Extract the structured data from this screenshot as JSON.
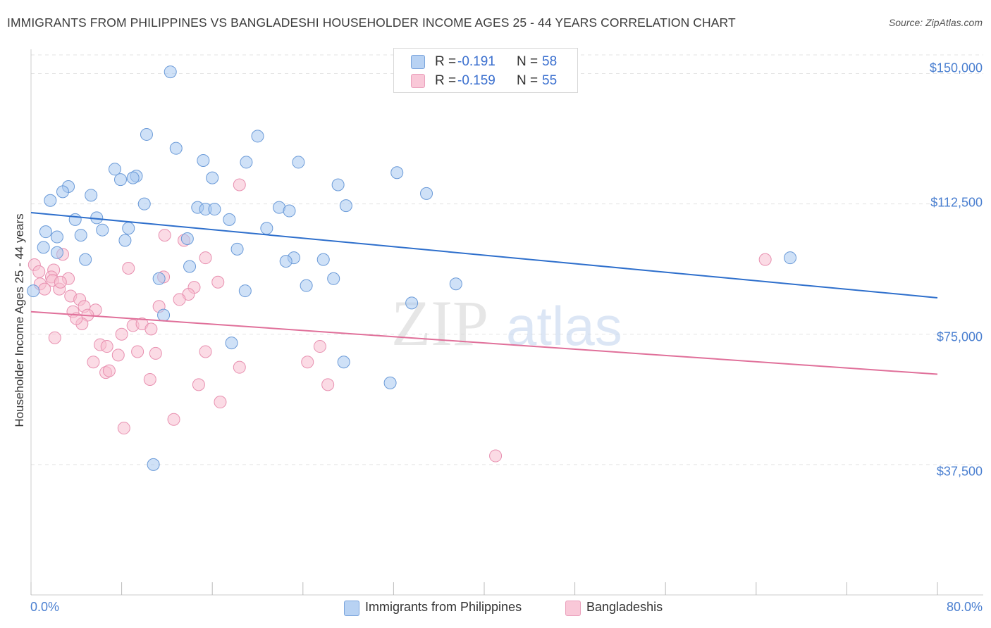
{
  "header": {
    "title": "IMMIGRANTS FROM PHILIPPINES VS BANGLADESHI HOUSEHOLDER INCOME AGES 25 - 44 YEARS CORRELATION CHART",
    "source": "Source: ZipAtlas.com"
  },
  "watermark": {
    "zip": "ZIP",
    "atlas": "atlas"
  },
  "legend": {
    "rows": [
      {
        "r_label": "R =",
        "r_value": "-0.191",
        "n_label": "N =",
        "n_value": "58"
      },
      {
        "r_label": "R =",
        "r_value": "-0.159",
        "n_label": "N =",
        "n_value": "55"
      }
    ]
  },
  "colors": {
    "philippines": "#a8c8f0",
    "philippines_stroke": "#6a9ad8",
    "philippines_line": "#2e6fcc",
    "bangladeshi": "#f7bdd0",
    "bangladeshi_stroke": "#e890b0",
    "bangladeshi_line": "#e0709a",
    "tick_label": "#4a7fd0",
    "grid": "#e3e3e3"
  },
  "chart_data": {
    "type": "scatter",
    "title": "IMMIGRANTS FROM PHILIPPINES VS BANGLADESHI HOUSEHOLDER INCOME AGES 25 - 44 YEARS CORRELATION CHART",
    "xlabel": "",
    "ylabel": "Householder Income Ages 25 - 44 years",
    "xlim": [
      0,
      80
    ],
    "ylim": [
      0,
      157000
    ],
    "x_tick_labels": [
      "0.0%",
      "80.0%"
    ],
    "y_ticks": [
      37500,
      75000,
      112500,
      150000
    ],
    "y_tick_labels": [
      "$37,500",
      "$75,000",
      "$112,500",
      "$150,000"
    ],
    "grid": true,
    "legend_position": "top-center",
    "series": [
      {
        "name": "Immigrants from Philippines",
        "R": -0.191,
        "N": 58,
        "trend": {
          "x": [
            0,
            80
          ],
          "y": [
            110000,
            85500
          ]
        },
        "points": [
          [
            12.3,
            150500
          ],
          [
            10.2,
            132500
          ],
          [
            12.8,
            128500
          ],
          [
            20.0,
            132000
          ],
          [
            19.0,
            124500
          ],
          [
            7.4,
            122500
          ],
          [
            7.9,
            119500
          ],
          [
            9.3,
            120500
          ],
          [
            9.0,
            120000
          ],
          [
            3.3,
            117500
          ],
          [
            2.8,
            116000
          ],
          [
            5.3,
            115000
          ],
          [
            1.7,
            113500
          ],
          [
            10.0,
            112500
          ],
          [
            14.7,
            111500
          ],
          [
            15.4,
            111000
          ],
          [
            16.2,
            111000
          ],
          [
            21.9,
            111500
          ],
          [
            22.8,
            110500
          ],
          [
            17.5,
            108000
          ],
          [
            3.9,
            108000
          ],
          [
            5.8,
            108500
          ],
          [
            6.3,
            105000
          ],
          [
            8.6,
            105500
          ],
          [
            20.8,
            105500
          ],
          [
            2.3,
            103000
          ],
          [
            1.3,
            104500
          ],
          [
            4.4,
            103500
          ],
          [
            8.3,
            102000
          ],
          [
            13.8,
            102500
          ],
          [
            1.1,
            100000
          ],
          [
            18.2,
            99500
          ],
          [
            2.3,
            98500
          ],
          [
            4.8,
            96500
          ],
          [
            23.2,
            97000
          ],
          [
            25.8,
            96500
          ],
          [
            14.0,
            94500
          ],
          [
            22.5,
            96000
          ],
          [
            26.7,
            91000
          ],
          [
            24.3,
            89000
          ],
          [
            11.3,
            91000
          ],
          [
            18.9,
            87500
          ],
          [
            37.5,
            89500
          ],
          [
            67.0,
            97000
          ],
          [
            0.2,
            87500
          ],
          [
            33.6,
            84000
          ],
          [
            11.7,
            80500
          ],
          [
            17.7,
            72500
          ],
          [
            27.6,
            67000
          ],
          [
            31.7,
            61000
          ],
          [
            10.8,
            37500
          ],
          [
            15.2,
            125000
          ],
          [
            32.3,
            121500
          ],
          [
            27.1,
            118000
          ],
          [
            34.9,
            115500
          ],
          [
            16.0,
            120000
          ],
          [
            23.6,
            124500
          ],
          [
            27.8,
            112000
          ]
        ]
      },
      {
        "name": "Bangladeshis",
        "R": -0.159,
        "N": 55,
        "trend": {
          "x": [
            0,
            80
          ],
          "y": [
            81500,
            63500
          ]
        },
        "points": [
          [
            18.4,
            118000
          ],
          [
            11.8,
            103500
          ],
          [
            13.5,
            102000
          ],
          [
            15.4,
            97000
          ],
          [
            64.8,
            96500
          ],
          [
            2.8,
            98000
          ],
          [
            8.6,
            94000
          ],
          [
            2.0,
            93500
          ],
          [
            0.3,
            95000
          ],
          [
            1.8,
            91500
          ],
          [
            11.7,
            91500
          ],
          [
            16.5,
            90000
          ],
          [
            3.3,
            91000
          ],
          [
            1.9,
            90500
          ],
          [
            0.8,
            89500
          ],
          [
            2.5,
            88000
          ],
          [
            14.4,
            88500
          ],
          [
            1.2,
            88000
          ],
          [
            3.5,
            86000
          ],
          [
            4.3,
            85000
          ],
          [
            13.9,
            86500
          ],
          [
            13.1,
            85000
          ],
          [
            4.7,
            83000
          ],
          [
            11.3,
            83000
          ],
          [
            5.7,
            82000
          ],
          [
            3.7,
            81500
          ],
          [
            5.0,
            80500
          ],
          [
            9.0,
            77500
          ],
          [
            4.5,
            78000
          ],
          [
            9.8,
            78000
          ],
          [
            10.6,
            76500
          ],
          [
            8.0,
            75000
          ],
          [
            2.1,
            74000
          ],
          [
            6.1,
            72000
          ],
          [
            6.7,
            71500
          ],
          [
            9.4,
            70000
          ],
          [
            11.0,
            69500
          ],
          [
            15.4,
            70000
          ],
          [
            25.5,
            71500
          ],
          [
            7.7,
            69000
          ],
          [
            5.5,
            67000
          ],
          [
            24.4,
            67000
          ],
          [
            18.4,
            65500
          ],
          [
            6.6,
            64000
          ],
          [
            6.9,
            64500
          ],
          [
            10.5,
            62000
          ],
          [
            14.8,
            60500
          ],
          [
            26.2,
            60500
          ],
          [
            16.7,
            55500
          ],
          [
            12.6,
            50500
          ],
          [
            8.2,
            48000
          ],
          [
            41.0,
            40000
          ],
          [
            0.7,
            93000
          ],
          [
            4.0,
            79500
          ],
          [
            2.6,
            90000
          ]
        ]
      }
    ]
  }
}
